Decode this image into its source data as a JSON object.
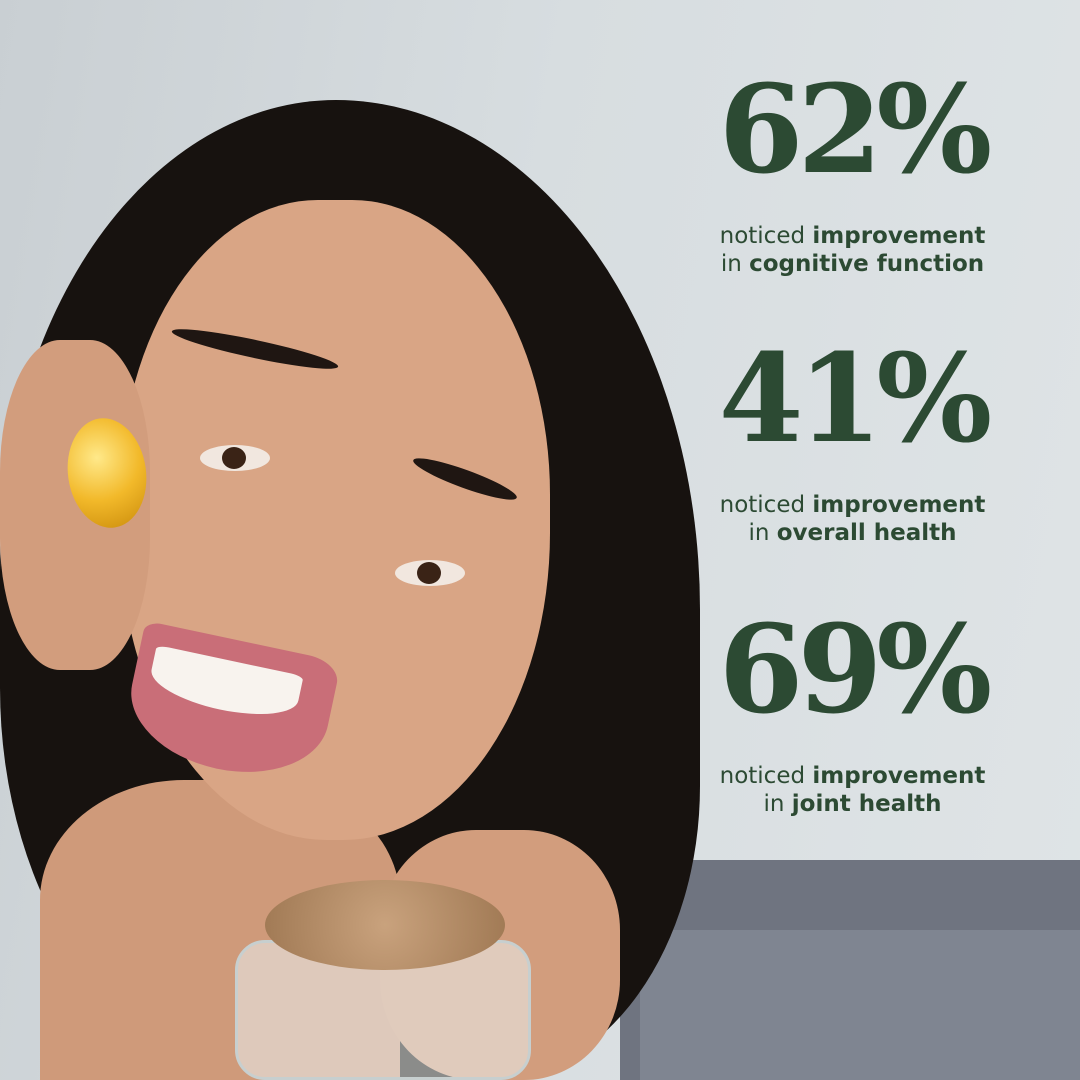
{
  "colors": {
    "text": "#2c4a33",
    "background": "#d7dde0"
  },
  "stats": [
    {
      "value": "62%",
      "caption_prefix": "noticed",
      "caption_bold1": "improvement",
      "caption_in": "in",
      "caption_bold2": "cognitive function"
    },
    {
      "value": "41%",
      "caption_prefix": "noticed",
      "caption_bold1": "improvement",
      "caption_in": "in",
      "caption_bold2": "overall health"
    },
    {
      "value": "69%",
      "caption_prefix": "noticed",
      "caption_bold1": "improvement",
      "caption_in": "in",
      "caption_bold2": "joint health"
    }
  ]
}
